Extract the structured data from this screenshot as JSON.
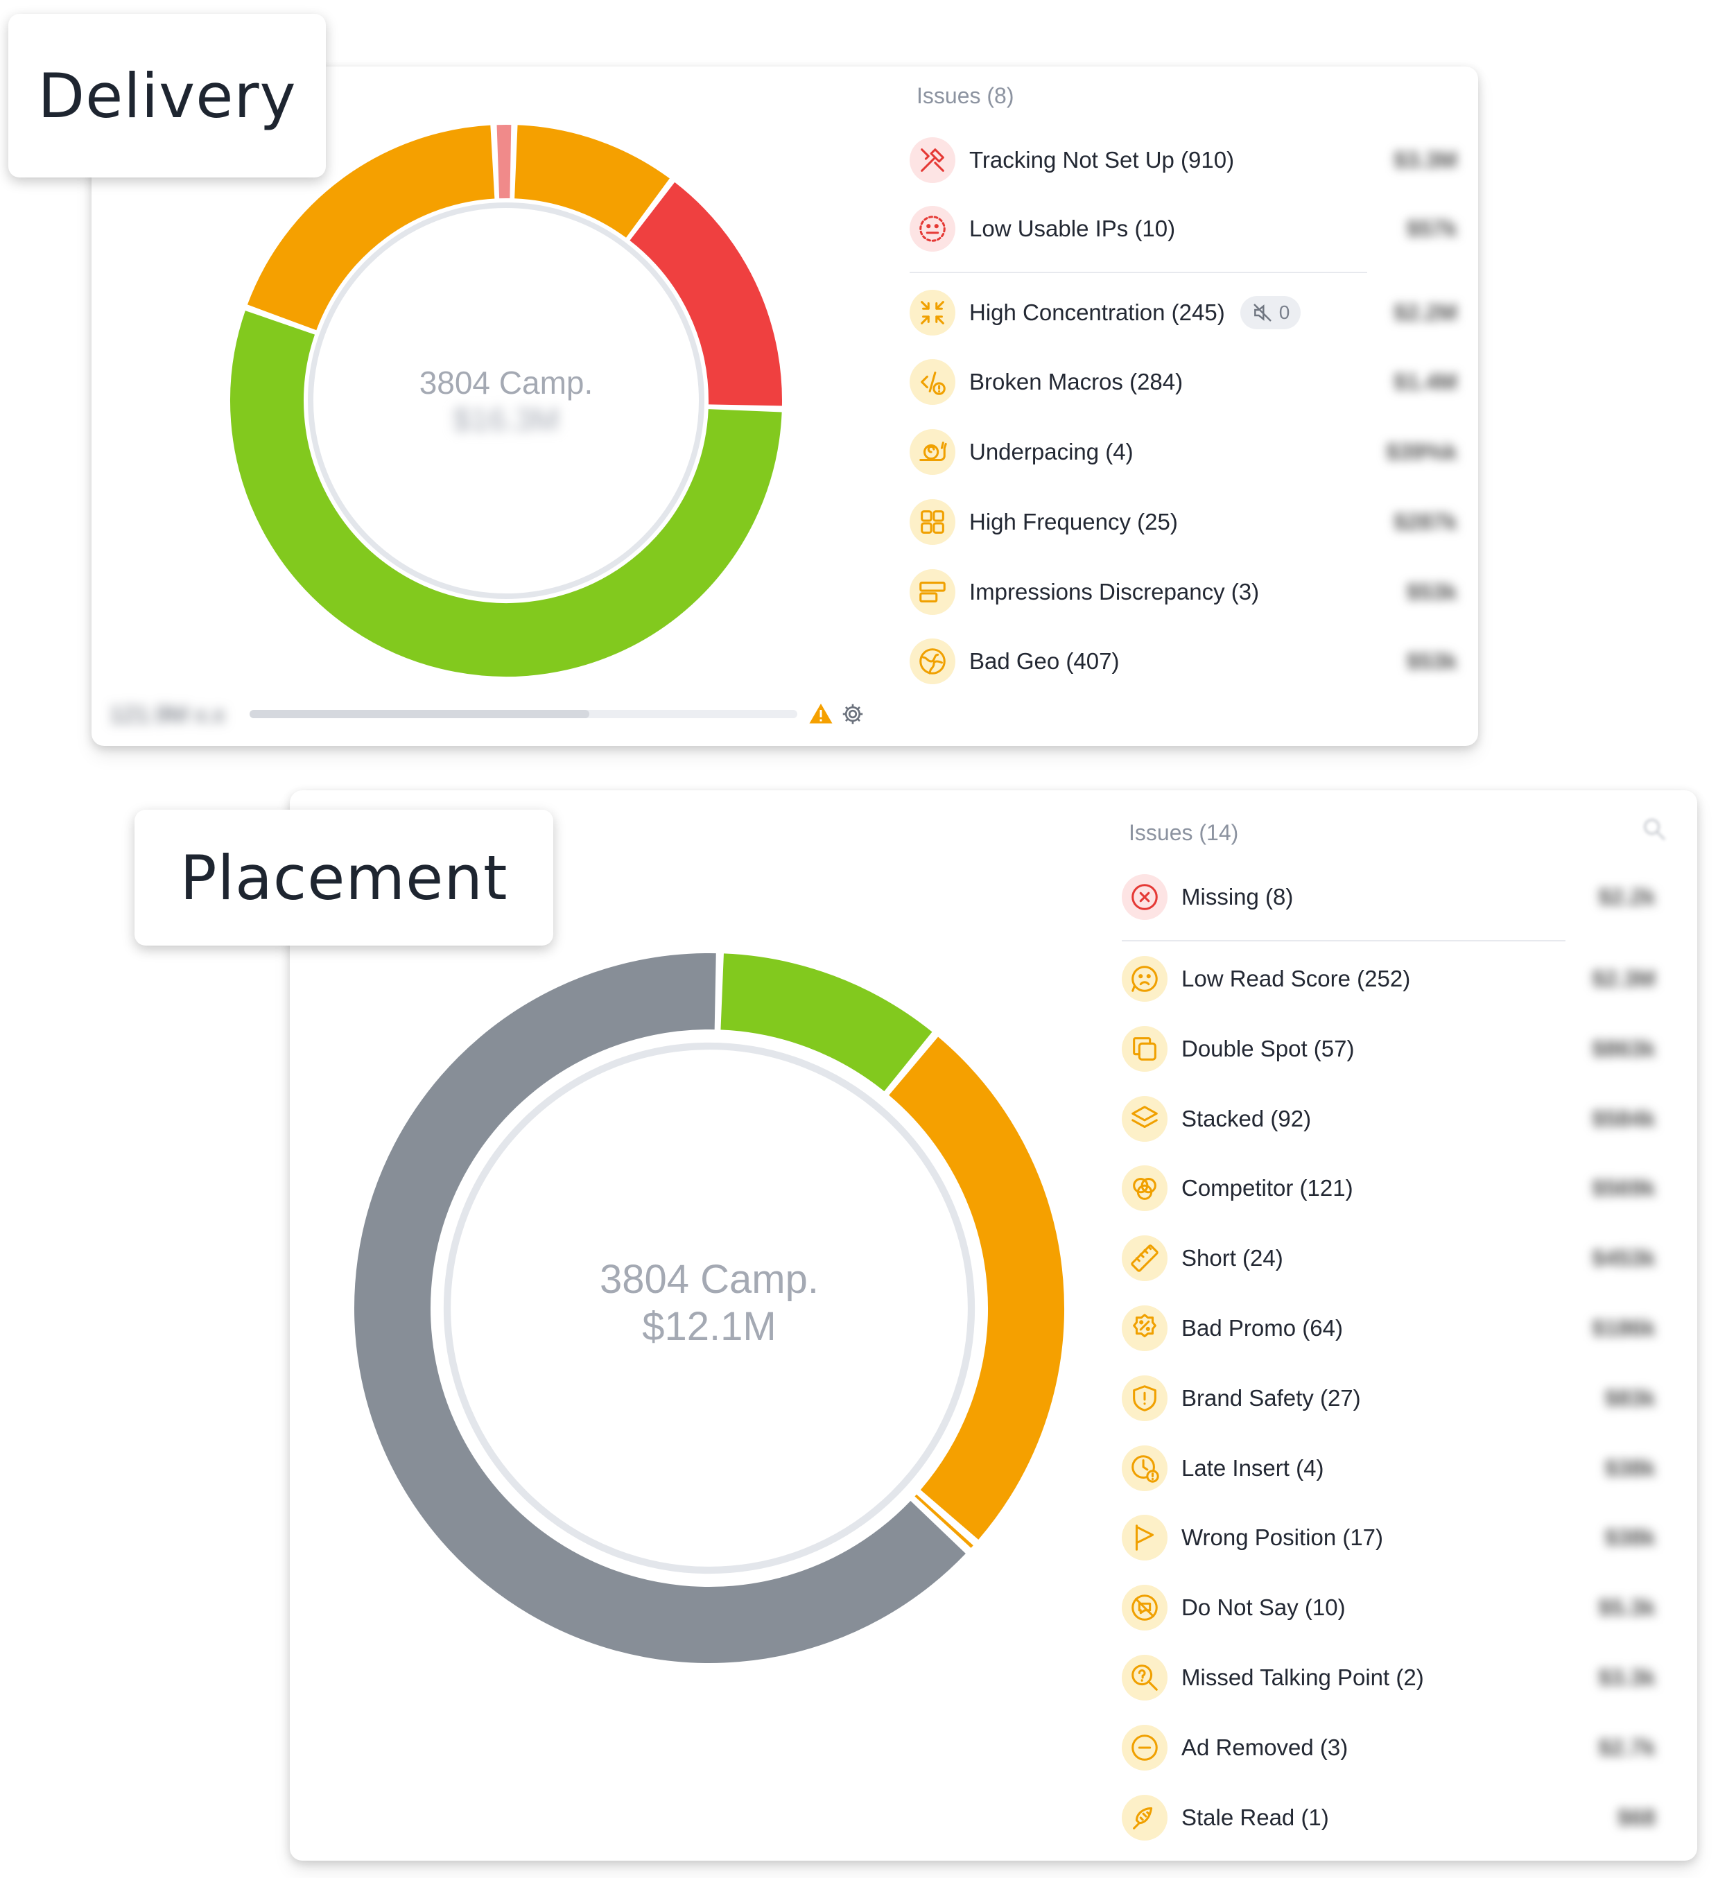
{
  "delivery": {
    "section_label": "Delivery",
    "donut": {
      "camp_text": "3804 Camp.",
      "amount_text": "$16.3M",
      "segments": [
        {
          "color": "#f5a000",
          "fraction": 0.098
        },
        {
          "color": "#ef4040",
          "fraction": 0.152
        },
        {
          "color": "#82c91e",
          "fraction": 0.55
        },
        {
          "color": "#f5a000",
          "fraction": 0.188
        },
        {
          "color": "#f08a8a",
          "fraction": 0.012
        }
      ]
    },
    "footer": {
      "stat_text": "121.9M x.x",
      "progress": 0.62
    },
    "issues_header": "Issues (8)",
    "issues": [
      {
        "icon": "tools-icon",
        "tone": "red",
        "label": "Tracking Not Set Up (910)",
        "value": "$3.3M"
      },
      {
        "icon": "neutral-face-icon",
        "tone": "red",
        "label": "Low Usable IPs (10)",
        "value": "$57k"
      },
      {
        "icon": "compress-arrows-icon",
        "tone": "amber",
        "label": "High Concentration (245)",
        "value": "$2.2M",
        "muted_count": "0"
      },
      {
        "icon": "code-warning-icon",
        "tone": "amber",
        "label": "Broken Macros (284)",
        "value": "$1.4M"
      },
      {
        "icon": "snail-icon",
        "tone": "amber",
        "label": "Underpacing (4)",
        "value": "$39%k"
      },
      {
        "icon": "grid-icon",
        "tone": "amber",
        "label": "High Frequency (25)",
        "value": "$287k"
      },
      {
        "icon": "bars-icon",
        "tone": "amber",
        "label": "Impressions Discrepancy (3)",
        "value": "$53k"
      },
      {
        "icon": "globe-icon",
        "tone": "amber",
        "label": "Bad Geo (407)",
        "value": "$53k"
      }
    ]
  },
  "placement": {
    "section_label": "Placement",
    "donut": {
      "camp_text": "3804 Camp.",
      "amount_text": "$12.1M",
      "segments": [
        {
          "color": "#82c91e",
          "fraction": 0.105
        },
        {
          "color": "#f5a000",
          "fraction": 0.255
        },
        {
          "color": "#f5a000",
          "fraction": 0.005
        },
        {
          "color": "#878e97",
          "fraction": 0.635
        }
      ]
    },
    "issues_header": "Issues (14)",
    "issues": [
      {
        "icon": "x-circle-icon",
        "tone": "red",
        "label": "Missing (8)",
        "value": "$2.2k"
      },
      {
        "icon": "sad-face-icon",
        "tone": "amber",
        "label": "Low Read Score (252)",
        "value": "$2.3M"
      },
      {
        "icon": "copy-icon",
        "tone": "amber",
        "label": "Double Spot (57)",
        "value": "$863k"
      },
      {
        "icon": "layers-icon",
        "tone": "amber",
        "label": "Stacked (92)",
        "value": "$584k"
      },
      {
        "icon": "venn-icon",
        "tone": "amber",
        "label": "Competitor (121)",
        "value": "$569k"
      },
      {
        "icon": "ruler-icon",
        "tone": "amber",
        "label": "Short (24)",
        "value": "$453k"
      },
      {
        "icon": "percent-badge-icon",
        "tone": "amber",
        "label": "Bad Promo (64)",
        "value": "$186k"
      },
      {
        "icon": "shield-icon",
        "tone": "amber",
        "label": "Brand Safety (27)",
        "value": "$83k"
      },
      {
        "icon": "clock-warning-icon",
        "tone": "amber",
        "label": "Late Insert (4)",
        "value": "$38k"
      },
      {
        "icon": "flag-icon",
        "tone": "amber",
        "label": "Wrong Position (17)",
        "value": "$38k"
      },
      {
        "icon": "no-speech-icon",
        "tone": "amber",
        "label": "Do Not Say (10)",
        "value": "$5.3k"
      },
      {
        "icon": "question-search-icon",
        "tone": "amber",
        "label": "Missed Talking Point (2)",
        "value": "$3.3k"
      },
      {
        "icon": "minus-circle-icon",
        "tone": "amber",
        "label": "Ad Removed (3)",
        "value": "$2.7k"
      },
      {
        "icon": "stale-icon",
        "tone": "amber",
        "label": "Stale Read (1)",
        "value": "$68"
      }
    ]
  }
}
